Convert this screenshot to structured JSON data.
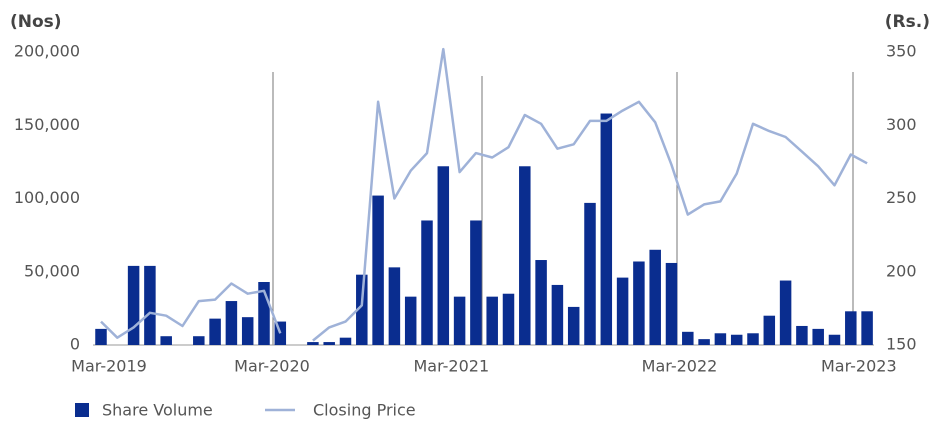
{
  "chart_data": {
    "type": "bar-line",
    "y_label": "(Nos)",
    "y2_label": "(Rs.)",
    "categories": [
      "Mar-2019",
      null,
      null,
      null,
      null,
      null,
      null,
      null,
      null,
      null,
      "Mar-2020",
      null,
      null,
      null,
      null,
      null,
      null,
      null,
      null,
      null,
      null,
      "Mar-2021",
      null,
      null,
      null,
      null,
      null,
      null,
      null,
      null,
      null,
      null,
      null,
      null,
      null,
      "Mar-2022",
      null,
      null,
      null,
      null,
      null,
      null,
      null,
      null,
      null,
      null,
      "Mar-2023",
      null
    ],
    "series": [
      {
        "name": "Share Volume",
        "type": "bar",
        "color": "#0a2d8f",
        "values": [
          11000,
          0,
          54000,
          54000,
          6000,
          0,
          6000,
          18000,
          30000,
          19000,
          43000,
          16000,
          0,
          2000,
          2000,
          5000,
          48000,
          102000,
          53000,
          33000,
          85000,
          122000,
          33000,
          85000,
          33000,
          35000,
          122000,
          58000,
          41000,
          26000,
          97000,
          158000,
          46000,
          57000,
          65000,
          56000,
          9000,
          4000,
          8000,
          7000,
          8000,
          20000,
          44000,
          13000,
          11000,
          7000,
          23000,
          23000
        ]
      },
      {
        "name": "Closing Price",
        "type": "line",
        "axis": "y2",
        "color": "#9fb2d8",
        "values": [
          166,
          155,
          162,
          172,
          170,
          163,
          180,
          181,
          192,
          185,
          187,
          158,
          null,
          153,
          162,
          166,
          177,
          316,
          250,
          269,
          281,
          352,
          268,
          281,
          278,
          285,
          307,
          301,
          284,
          287,
          303,
          303,
          310,
          316,
          302,
          273,
          239,
          246,
          248,
          267,
          301,
          296,
          292,
          282,
          272,
          259,
          280,
          274
        ]
      }
    ],
    "ylim": [
      0,
      200000
    ],
    "yticks": [
      0,
      {
        "value": 50000,
        "label": "50,000"
      },
      {
        "value": 100000,
        "label": "100,000"
      },
      {
        "value": 150000,
        "label": "150,000"
      },
      {
        "value": 200000,
        "label": "200,000"
      }
    ],
    "y2lim": [
      150,
      350
    ],
    "y2ticks": [
      150,
      200,
      250,
      300,
      350
    ],
    "legend": "bottom-left"
  }
}
